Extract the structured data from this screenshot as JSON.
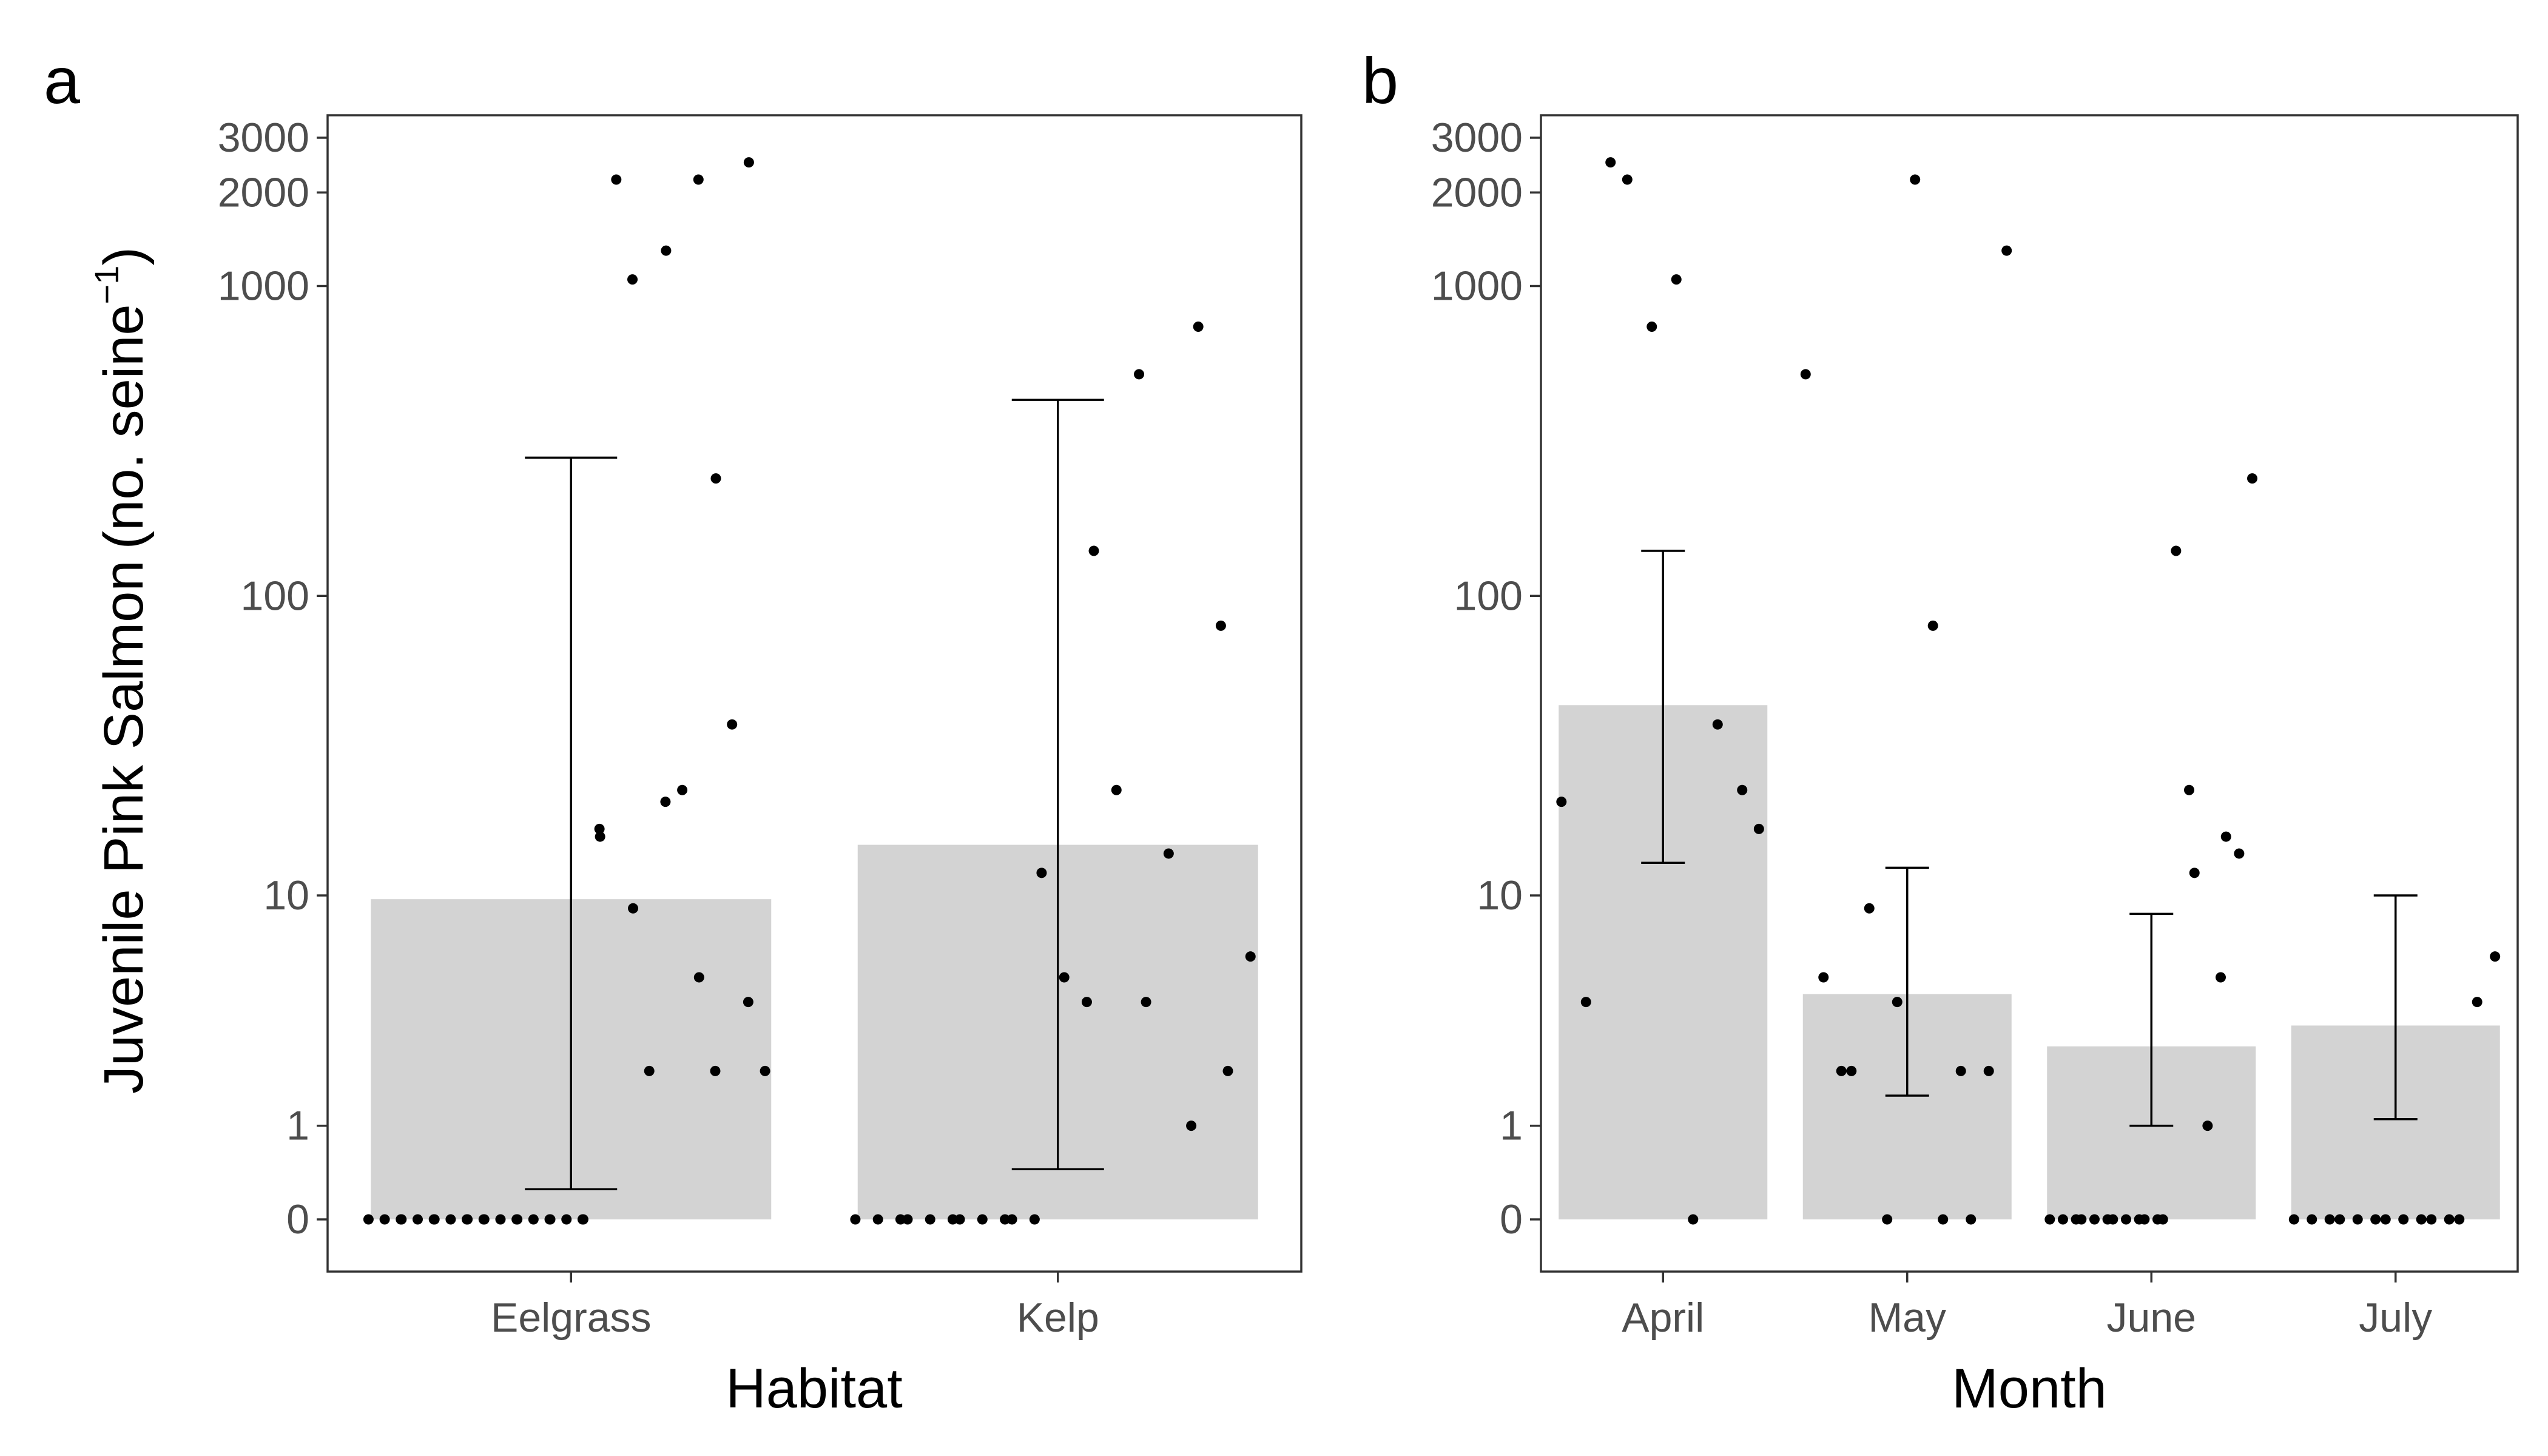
{
  "figure": {
    "y_axis_title": "Juvenile Pink Salmon",
    "y_axis_unit_open": "(",
    "y_axis_unit_text": "no. seine",
    "y_axis_unit_sup": "−1",
    "y_axis_unit_close": ")"
  },
  "chart_data": [
    {
      "panel": "a",
      "type": "bar",
      "xlabel": "Habitat",
      "y_scale": "log(1+y)",
      "y_ticks": [
        0,
        1,
        10,
        100,
        1000,
        2000,
        3000
      ],
      "categories": [
        "Eelgrass",
        "Kelp"
      ],
      "values": [
        9.7,
        15
      ],
      "error_low": [
        0.25,
        0.45
      ],
      "error_high": [
        280,
        430
      ],
      "points": [
        {
          "x": "Eelgrass",
          "y": [
            0,
            0,
            0,
            0,
            0,
            0,
            0,
            0,
            0,
            0,
            0,
            0,
            0,
            0,
            0,
            0,
            0,
            0,
            0,
            0,
            0,
            17,
            16,
            2200,
            1050,
            9,
            2,
            21,
            1300,
            23,
            2200,
            5,
            2,
            240,
            38,
            4,
            2500,
            2
          ]
        },
        {
          "x": "Kelp",
          "y": [
            0,
            0,
            0,
            0,
            0,
            0,
            0,
            0,
            0,
            0,
            0,
            12,
            5,
            4,
            140,
            23,
            520,
            4,
            14,
            1,
            740,
            80,
            2,
            6
          ]
        }
      ]
    },
    {
      "panel": "b",
      "type": "bar",
      "xlabel": "Month",
      "y_scale": "log(1+y)",
      "y_ticks": [
        0,
        1,
        10,
        100,
        1000,
        2000,
        3000
      ],
      "categories": [
        "April",
        "May",
        "June",
        "July"
      ],
      "values": [
        44,
        4.3,
        2.6,
        3.2
      ],
      "error_low": [
        13,
        1.5,
        1,
        1.1
      ],
      "error_high": [
        140,
        12.5,
        8.6,
        10
      ],
      "points": [
        {
          "x": "April",
          "y": [
            21,
            4,
            2500,
            2200,
            740,
            1050,
            0,
            38,
            23,
            17
          ]
        },
        {
          "x": "May",
          "y": [
            520,
            5,
            2,
            2,
            9,
            0,
            4,
            2200,
            80,
            0,
            2,
            0,
            2,
            1300
          ]
        },
        {
          "x": "June",
          "y": [
            0,
            0,
            0,
            0,
            0,
            0,
            0,
            0,
            0,
            0,
            0,
            0,
            140,
            23,
            12,
            1,
            5,
            16,
            14,
            240
          ]
        },
        {
          "x": "July",
          "y": [
            0,
            0,
            0,
            0,
            0,
            0,
            0,
            0,
            0,
            0,
            0,
            0,
            4,
            6
          ]
        }
      ]
    }
  ]
}
